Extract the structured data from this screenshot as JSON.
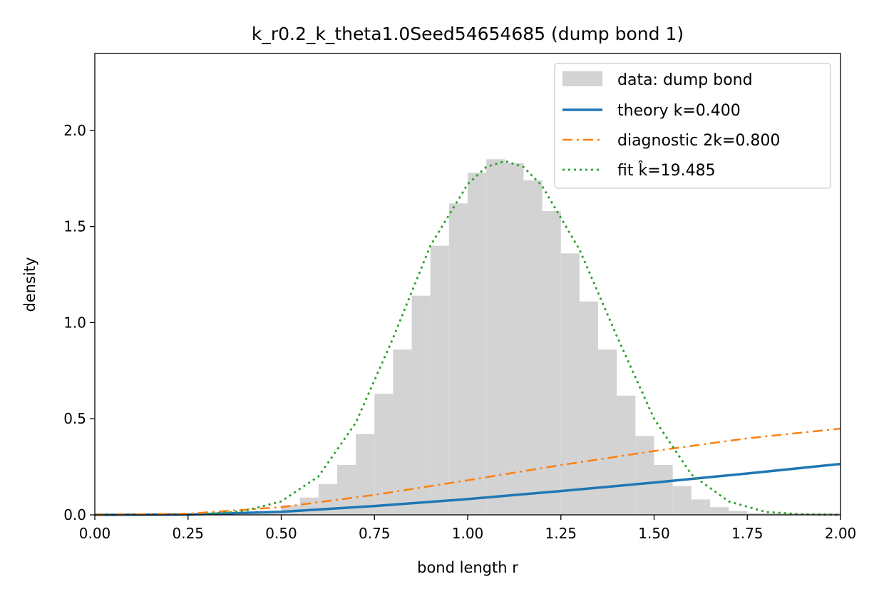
{
  "chart_data": {
    "type": "bar",
    "title": "k_r0.2_k_theta1.0Seed54654685 (dump bond 1)",
    "xlabel": "bond length r",
    "ylabel": "density",
    "xlim": [
      0.0,
      2.0
    ],
    "ylim": [
      0.0,
      2.4
    ],
    "grid": false,
    "legend_position": "top-right",
    "x_ticks": [
      "0.00",
      "0.25",
      "0.50",
      "0.75",
      "1.00",
      "1.25",
      "1.50",
      "1.75",
      "2.00"
    ],
    "y_ticks": [
      "0.0",
      "0.5",
      "1.0",
      "1.5",
      "2.0"
    ],
    "histogram": {
      "name": "data: dump bond",
      "color": "#d3d3d3",
      "bin_start": 0.4,
      "bin_width": 0.05,
      "values": [
        0.01,
        0.02,
        0.05,
        0.09,
        0.16,
        0.26,
        0.42,
        0.63,
        0.86,
        1.14,
        1.4,
        1.62,
        1.78,
        1.85,
        1.83,
        1.74,
        1.58,
        1.36,
        1.11,
        0.86,
        0.62,
        0.41,
        0.26,
        0.15,
        0.08,
        0.04,
        0.02,
        0.01,
        0.01,
        0.01,
        0.01,
        0.01
      ]
    },
    "series": [
      {
        "name": "theory k=0.400",
        "color": "#1f77b4",
        "dash": "solid",
        "x": [
          0.0,
          0.25,
          0.5,
          0.75,
          1.0,
          1.25,
          1.5,
          1.75,
          2.0
        ],
        "values": [
          0.0,
          0.002,
          0.016,
          0.046,
          0.082,
          0.124,
          0.168,
          0.215,
          0.265
        ]
      },
      {
        "name": "diagnostic 2k=0.800",
        "color": "#ff7f0e",
        "dash": "dashdot",
        "x": [
          0.0,
          0.25,
          0.5,
          0.75,
          1.0,
          1.25,
          1.5,
          1.75,
          2.0
        ],
        "values": [
          0.0,
          0.006,
          0.04,
          0.104,
          0.18,
          0.259,
          0.332,
          0.398,
          0.449
        ]
      },
      {
        "name": "fit k̂=19.485",
        "color": "#2ca02c",
        "dash": "dotted",
        "x": [
          0.3,
          0.4,
          0.5,
          0.6,
          0.7,
          0.8,
          0.9,
          1.0,
          1.05,
          1.1,
          1.15,
          1.2,
          1.3,
          1.4,
          1.5,
          1.6,
          1.7,
          1.8,
          1.9,
          2.0
        ],
        "values": [
          0.005,
          0.02,
          0.07,
          0.2,
          0.48,
          0.92,
          1.4,
          1.72,
          1.81,
          1.84,
          1.81,
          1.71,
          1.38,
          0.93,
          0.5,
          0.21,
          0.07,
          0.015,
          0.003,
          0.0
        ]
      }
    ]
  }
}
